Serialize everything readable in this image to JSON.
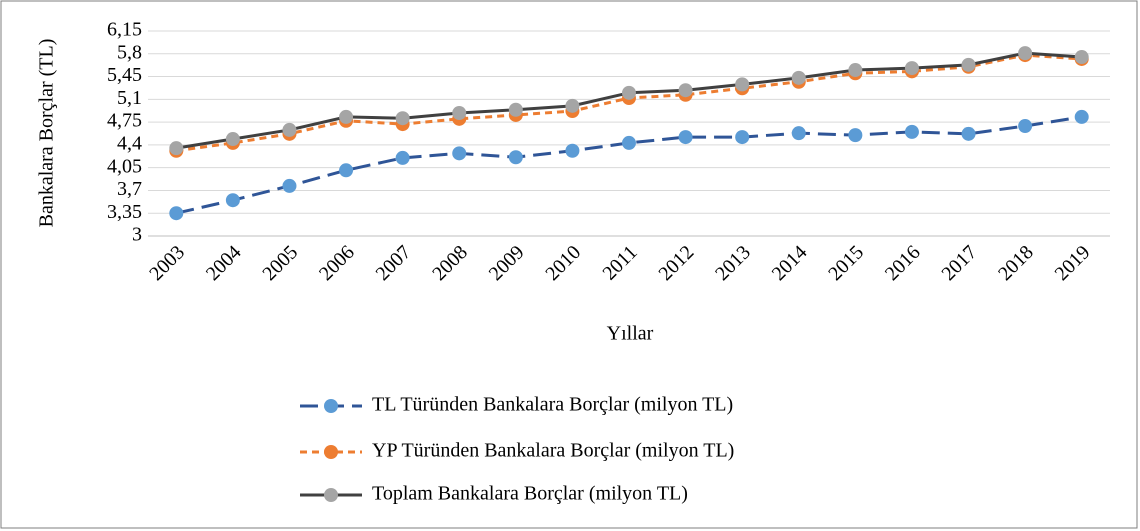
{
  "chart_data": {
    "type": "line",
    "y_label": "Bankalara Borçlar (TL)",
    "x_label": "Yıllar",
    "categories": [
      "2003",
      "2004",
      "2005",
      "2006",
      "2007",
      "2008",
      "2009",
      "2010",
      "2011",
      "2012",
      "2013",
      "2014",
      "2015",
      "2016",
      "2017",
      "2018",
      "2019"
    ],
    "series": [
      {
        "name": "TL Türünden Bankalara Borçlar (milyon TL)",
        "color": "#5b9bd5",
        "line_color": "#2f5597",
        "dash": "18 8",
        "values": [
          3.35,
          3.55,
          3.77,
          4.01,
          4.2,
          4.27,
          4.21,
          4.31,
          4.43,
          4.52,
          4.52,
          4.58,
          4.55,
          4.6,
          4.57,
          4.69,
          4.83
        ]
      },
      {
        "name": "YP Türünden Bankalara Borçlar (milyon TL)",
        "color": "#ed7d31",
        "line_color": "#ed7d31",
        "dash": "7 5",
        "values": [
          4.31,
          4.43,
          4.57,
          4.77,
          4.72,
          4.8,
          4.86,
          4.92,
          5.12,
          5.17,
          5.27,
          5.37,
          5.5,
          5.53,
          5.6,
          5.78,
          5.72
        ]
      },
      {
        "name": "Toplam Bankalara Borçlar (milyon TL)",
        "color": "#a5a5a5",
        "line_color": "#404040",
        "dash": "none",
        "values": [
          4.35,
          4.49,
          4.63,
          4.83,
          4.81,
          4.89,
          4.94,
          5.0,
          5.2,
          5.24,
          5.33,
          5.43,
          5.55,
          5.58,
          5.63,
          5.81,
          5.75
        ]
      }
    ],
    "ylim": [
      3,
      6.15
    ],
    "yticks": [
      3,
      {
        "value": 3.35,
        "label": "3,35"
      },
      {
        "value": 3.7,
        "label": "3,7"
      },
      {
        "value": 4.05,
        "label": "4,05"
      },
      {
        "value": 4.4,
        "label": "4,4"
      },
      {
        "value": 4.75,
        "label": "4,75"
      },
      {
        "value": 5.1,
        "label": "5,1"
      },
      {
        "value": 5.45,
        "label": "5,45"
      },
      {
        "value": 5.8,
        "label": "5,8"
      },
      {
        "value": 6.15,
        "label": "6,15"
      }
    ],
    "grid": true,
    "legend": "bottom"
  }
}
